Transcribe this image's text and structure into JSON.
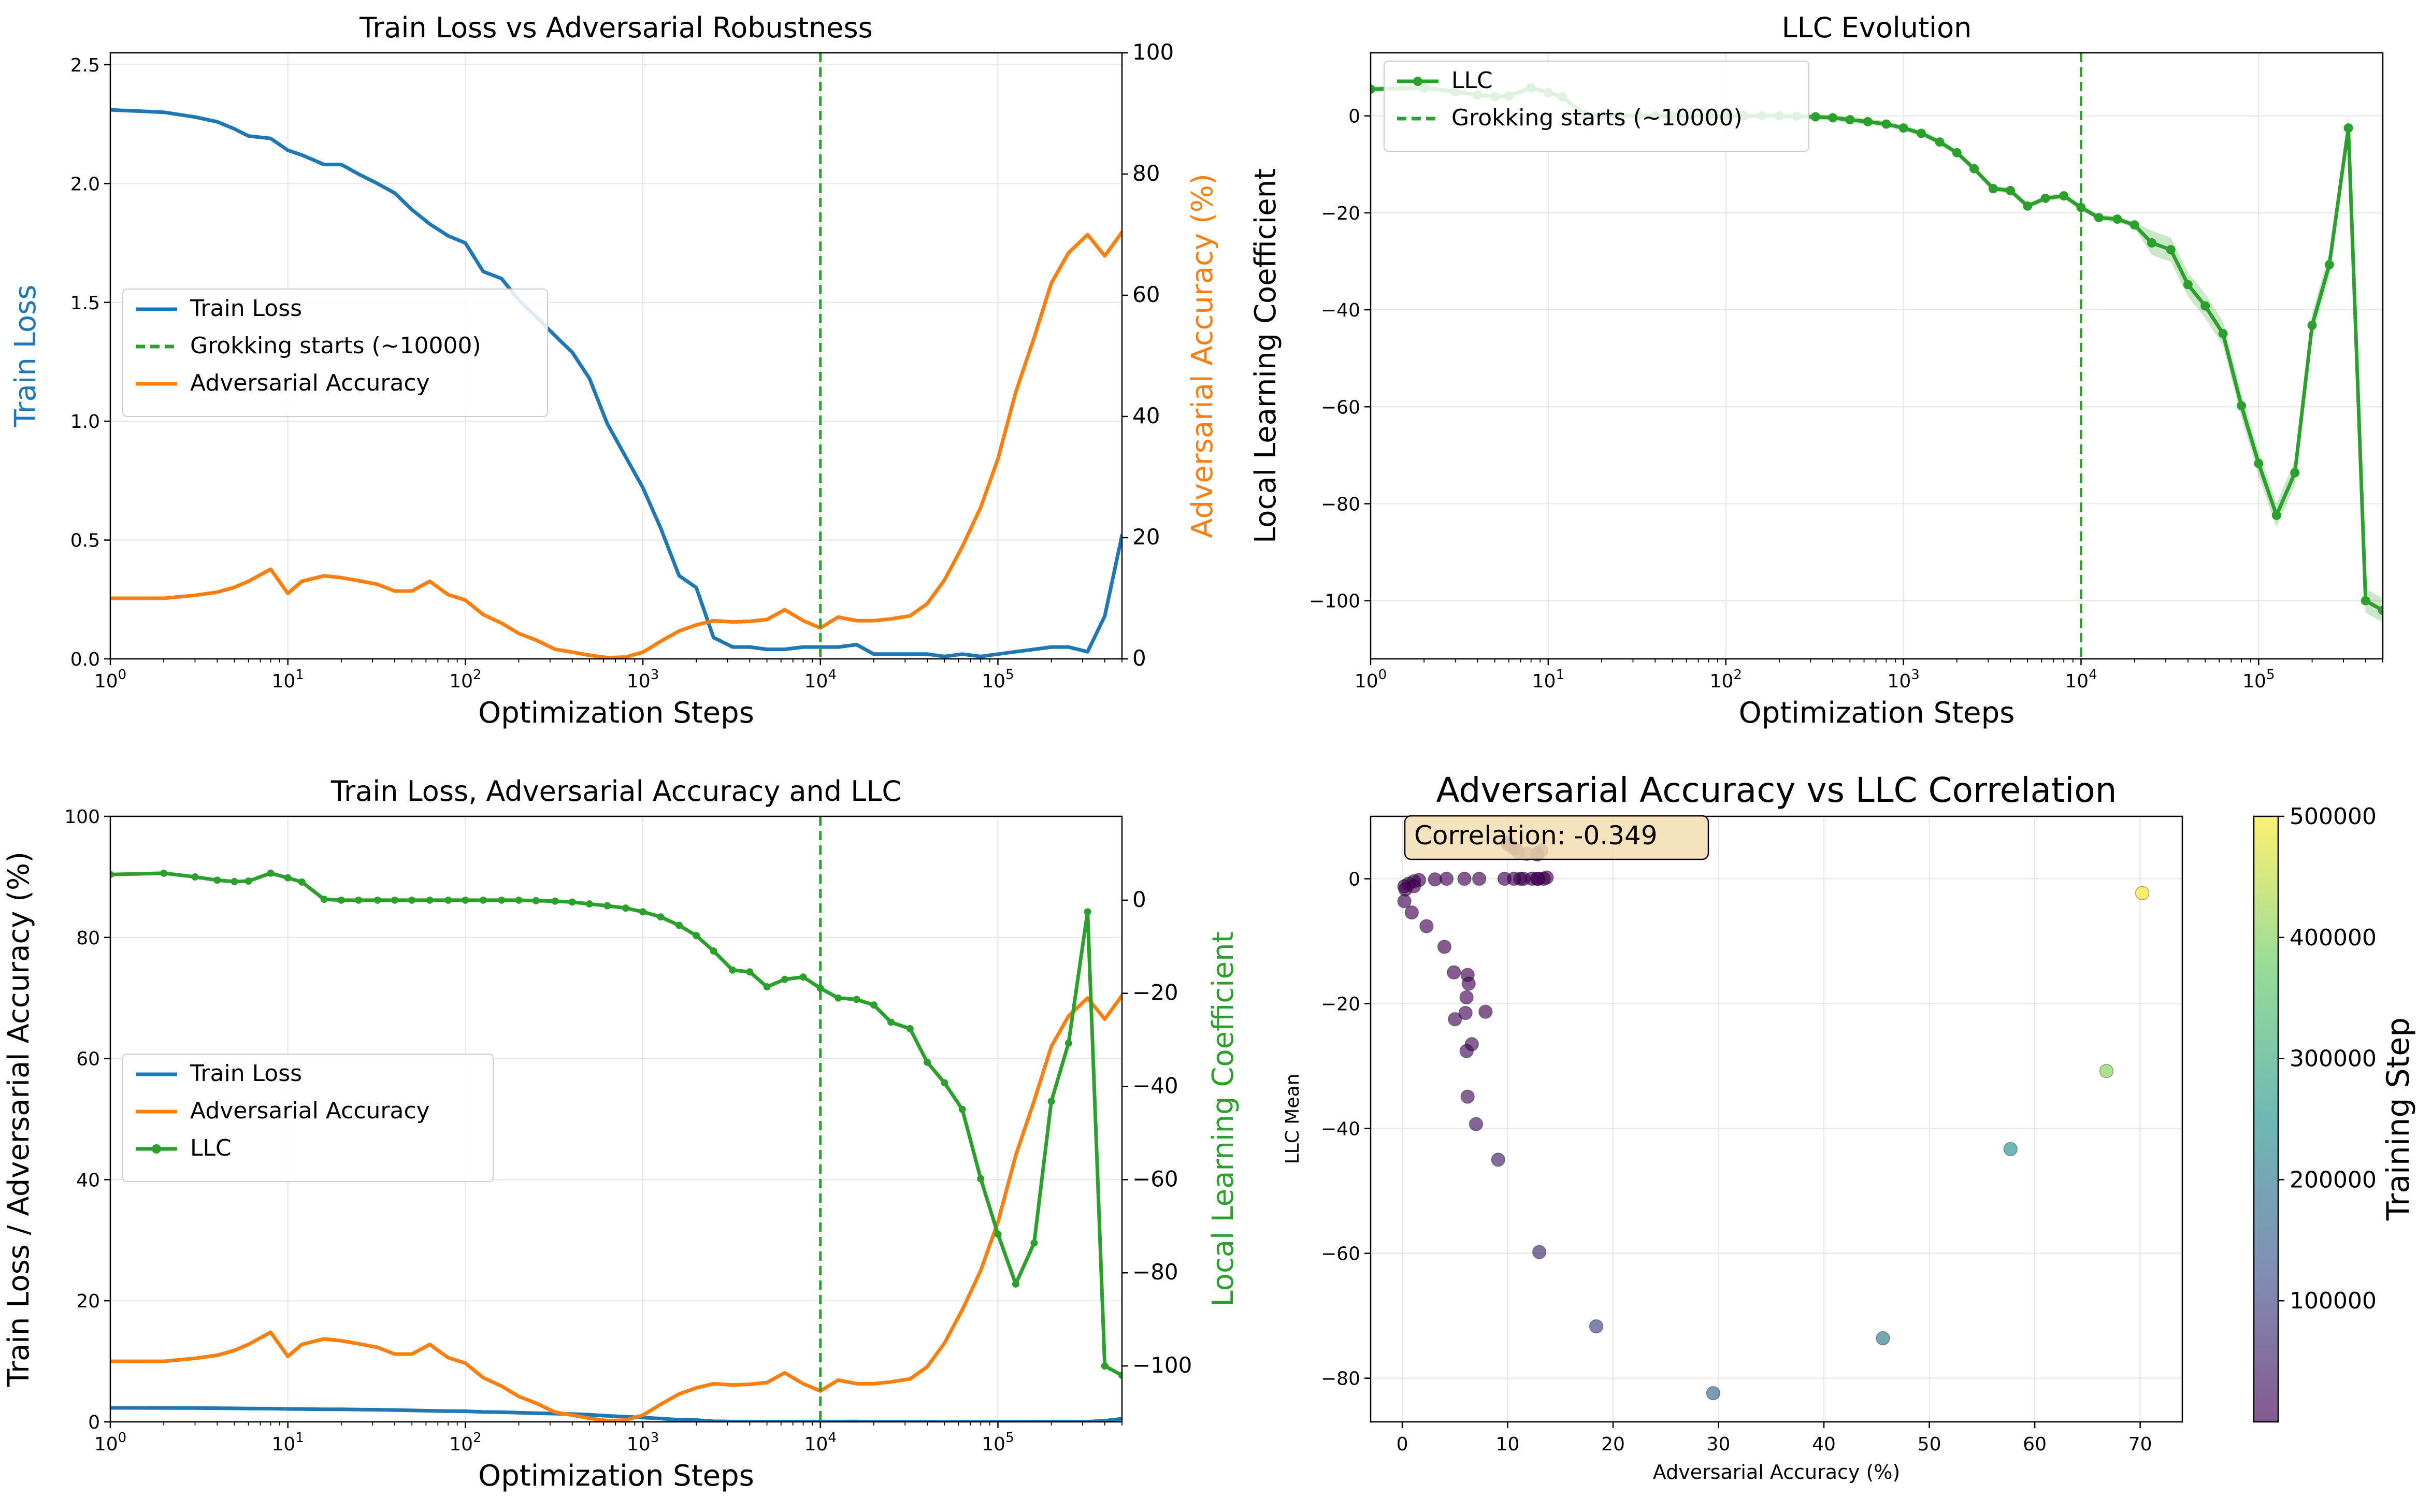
{
  "colors": {
    "train_loss": "#1f77b4",
    "adversarial": "#ff7f0e",
    "llc": "#2ca02c",
    "grid": "#e5e5e5",
    "grokking_line": "#2ca02c"
  },
  "chart_data": [
    {
      "id": "p1",
      "type": "line",
      "title": "Train Loss vs Adversarial Robustness",
      "xlabel": "Optimization Steps",
      "ylabel": "Train Loss",
      "ylabel_right": "Adversarial Accuracy (%)",
      "xscale": "log",
      "xlim": [
        1,
        500000
      ],
      "ylim": [
        0,
        2.55
      ],
      "ylim_right": [
        0,
        100
      ],
      "x_ticks": [
        1,
        10,
        100,
        1000,
        10000,
        100000
      ],
      "x_tick_labels": [
        {
          "base": "10",
          "exp": "0"
        },
        {
          "base": "10",
          "exp": "1"
        },
        {
          "base": "10",
          "exp": "2"
        },
        {
          "base": "10",
          "exp": "3"
        },
        {
          "base": "10",
          "exp": "4"
        },
        {
          "base": "10",
          "exp": "5"
        }
      ],
      "y_ticks": [
        0,
        0.5,
        1.0,
        1.5,
        2.0,
        2.5
      ],
      "y_tick_labels": [
        "0.0",
        "0.5",
        "1.0",
        "1.5",
        "2.0",
        "2.5"
      ],
      "y_ticks_right": [
        0,
        20,
        40,
        60,
        80,
        100
      ],
      "y_tick_labels_right": [
        "0",
        "20",
        "40",
        "60",
        "80",
        "100"
      ],
      "grid": true,
      "legend_position": "center-left",
      "legend": [
        "Train Loss",
        "Grokking starts (~10000)",
        "Adversarial Accuracy"
      ],
      "vline": 10000,
      "series": [
        {
          "name": "Train Loss",
          "axis": "left",
          "color": "#1f77b4",
          "x": [
            1,
            2,
            3,
            4,
            5,
            6,
            8,
            10,
            12,
            16,
            20,
            25,
            32,
            40,
            50,
            63,
            80,
            100,
            126,
            160,
            200,
            250,
            320,
            400,
            500,
            630,
            800,
            1000,
            1260,
            1600,
            2000,
            2500,
            3200,
            4000,
            5000,
            6300,
            8000,
            10000,
            12600,
            16000,
            20000,
            25000,
            32000,
            40000,
            50000,
            63000,
            80000,
            100000,
            126000,
            160000,
            200000,
            250000,
            320000,
            400000,
            500000
          ],
          "y": [
            2.31,
            2.3,
            2.28,
            2.26,
            2.23,
            2.2,
            2.19,
            2.14,
            2.12,
            2.08,
            2.08,
            2.04,
            2.0,
            1.96,
            1.89,
            1.83,
            1.78,
            1.75,
            1.63,
            1.6,
            1.51,
            1.44,
            1.36,
            1.29,
            1.18,
            0.99,
            0.85,
            0.72,
            0.55,
            0.35,
            0.3,
            0.09,
            0.05,
            0.05,
            0.04,
            0.04,
            0.05,
            0.05,
            0.05,
            0.06,
            0.02,
            0.02,
            0.02,
            0.02,
            0.01,
            0.02,
            0.01,
            0.02,
            0.03,
            0.04,
            0.05,
            0.05,
            0.03,
            0.18,
            0.52
          ]
        },
        {
          "name": "Adversarial Accuracy",
          "axis": "right",
          "color": "#ff7f0e",
          "x": [
            1,
            2,
            3,
            4,
            5,
            6,
            8,
            10,
            12,
            16,
            20,
            25,
            32,
            40,
            50,
            63,
            80,
            100,
            126,
            160,
            200,
            250,
            320,
            400,
            500,
            630,
            800,
            1000,
            1260,
            1600,
            2000,
            2500,
            3200,
            4000,
            5000,
            6300,
            8000,
            10000,
            12600,
            16000,
            20000,
            25000,
            32000,
            40000,
            50000,
            63000,
            80000,
            100000,
            126000,
            160000,
            200000,
            250000,
            320000,
            400000,
            500000
          ],
          "y": [
            10,
            10,
            10.5,
            11,
            11.8,
            12.8,
            14.8,
            10.8,
            12.8,
            13.7,
            13.4,
            12.9,
            12.3,
            11.2,
            11.2,
            12.8,
            10.6,
            9.7,
            7.3,
            5.9,
            4.2,
            3.1,
            1.6,
            1.1,
            0.6,
            0.2,
            0.3,
            1.1,
            2.9,
            4.6,
            5.6,
            6.3,
            6.1,
            6.2,
            6.5,
            8.1,
            6.3,
            5.1,
            6.9,
            6.3,
            6.3,
            6.6,
            7.1,
            9.1,
            13,
            18.5,
            25,
            33,
            44,
            53,
            62,
            67,
            70,
            66.5,
            70.4
          ]
        }
      ]
    },
    {
      "id": "p2",
      "type": "line",
      "title": "LLC Evolution",
      "xlabel": "Optimization Steps",
      "ylabel": "Local Learning Coefficient",
      "xscale": "log",
      "xlim": [
        1,
        500000
      ],
      "ylim": [
        -112,
        13
      ],
      "x_ticks": [
        1,
        10,
        100,
        1000,
        10000,
        100000
      ],
      "x_tick_labels": [
        {
          "base": "10",
          "exp": "0"
        },
        {
          "base": "10",
          "exp": "1"
        },
        {
          "base": "10",
          "exp": "2"
        },
        {
          "base": "10",
          "exp": "3"
        },
        {
          "base": "10",
          "exp": "4"
        },
        {
          "base": "10",
          "exp": "5"
        }
      ],
      "y_ticks": [
        0,
        -20,
        -40,
        -60,
        -80,
        -100
      ],
      "y_tick_labels": [
        "0",
        "−20",
        "−40",
        "−60",
        "−80",
        "−100"
      ],
      "grid": true,
      "legend_position": "top-left",
      "legend": [
        "LLC",
        "Grokking starts (~10000)"
      ],
      "vline": 10000,
      "series": [
        {
          "name": "LLC",
          "color": "#2ca02c",
          "markers": true,
          "band": true,
          "x": [
            1,
            2,
            3,
            4,
            5,
            6,
            8,
            10,
            12,
            16,
            20,
            25,
            32,
            40,
            50,
            63,
            80,
            100,
            126,
            160,
            200,
            250,
            320,
            400,
            500,
            630,
            800,
            1000,
            1260,
            1600,
            2000,
            2500,
            3200,
            4000,
            5000,
            6300,
            8000,
            10000,
            12600,
            16000,
            20000,
            25000,
            32000,
            40000,
            50000,
            63000,
            80000,
            100000,
            126000,
            160000,
            200000,
            250000,
            320000,
            400000,
            500000
          ],
          "y": [
            5.5,
            5.8,
            5.0,
            4.3,
            4.0,
            4.1,
            5.8,
            4.8,
            3.9,
            0.2,
            0.0,
            0.0,
            0.0,
            0.0,
            0.0,
            0.0,
            0.0,
            0.0,
            0.0,
            0.0,
            0.0,
            -0.1,
            -0.2,
            -0.4,
            -0.8,
            -1.2,
            -1.7,
            -2.5,
            -3.6,
            -5.4,
            -7.6,
            -10.9,
            -15.0,
            -15.4,
            -18.6,
            -17.0,
            -16.5,
            -18.9,
            -21.0,
            -21.3,
            -22.5,
            -26.2,
            -27.6,
            -34.8,
            -39.2,
            -44.9,
            -59.8,
            -71.7,
            -82.4,
            -73.6,
            -43.2,
            -30.7,
            -2.5,
            -100,
            -102
          ]
        }
      ]
    },
    {
      "id": "p3",
      "type": "line",
      "title": "Train Loss, Adversarial Accuracy and LLC",
      "xlabel": "Optimization Steps",
      "ylabel": "Train Loss / Adversarial Accuracy (%)",
      "ylabel_right": "Local Learning Coefficient",
      "xscale": "log",
      "xlim": [
        1,
        500000
      ],
      "ylim": [
        0,
        100
      ],
      "ylim_right": [
        -112,
        18
      ],
      "x_ticks": [
        1,
        10,
        100,
        1000,
        10000,
        100000
      ],
      "x_tick_labels": [
        {
          "base": "10",
          "exp": "0"
        },
        {
          "base": "10",
          "exp": "1"
        },
        {
          "base": "10",
          "exp": "2"
        },
        {
          "base": "10",
          "exp": "3"
        },
        {
          "base": "10",
          "exp": "4"
        },
        {
          "base": "10",
          "exp": "5"
        }
      ],
      "y_ticks": [
        0,
        20,
        40,
        60,
        80,
        100
      ],
      "y_tick_labels": [
        "0",
        "20",
        "40",
        "60",
        "80",
        "100"
      ],
      "y_ticks_right": [
        0,
        -20,
        -40,
        -60,
        -80,
        -100
      ],
      "y_tick_labels_right": [
        "0",
        "−20",
        "−40",
        "−60",
        "−80",
        "−100"
      ],
      "grid": true,
      "legend_position": "center-left",
      "legend": [
        "Train Loss",
        "Adversarial Accuracy",
        "LLC"
      ],
      "vline": 10000,
      "series_ref": "p3 uses the series of p1 (Train Loss, Adversarial Accuracy on left axis) and p2 (LLC on right axis)"
    },
    {
      "id": "p4",
      "type": "scatter",
      "title": "Adversarial Accuracy vs LLC Correlation",
      "xlabel": "Adversarial Accuracy (%)",
      "ylabel": "LLC Mean",
      "xlim": [
        -3,
        74
      ],
      "ylim": [
        -87,
        10
      ],
      "x_ticks": [
        0,
        10,
        20,
        30,
        40,
        50,
        60,
        70
      ],
      "x_tick_labels": [
        "0",
        "10",
        "20",
        "30",
        "40",
        "50",
        "60",
        "70"
      ],
      "y_ticks": [
        0,
        -20,
        -40,
        -60,
        -80
      ],
      "y_tick_labels": [
        "0",
        "−20",
        "−40",
        "−60",
        "−80"
      ],
      "grid": true,
      "annotation": "Correlation: -0.349",
      "colorbar_label": "Training Step",
      "colorbar_range": [
        1,
        500000
      ],
      "colorbar_ticks": [
        100000,
        200000,
        300000,
        400000,
        500000
      ],
      "colorbar_tick_labels": [
        "100000",
        "200000",
        "300000",
        "400000",
        "500000"
      ],
      "points": [
        {
          "x": 10.0,
          "y": 5.5,
          "step": 1
        },
        {
          "x": 10.0,
          "y": 5.8,
          "step": 2
        },
        {
          "x": 10.5,
          "y": 5.0,
          "step": 3
        },
        {
          "x": 11.0,
          "y": 4.3,
          "step": 4
        },
        {
          "x": 11.8,
          "y": 4.0,
          "step": 5
        },
        {
          "x": 12.8,
          "y": 4.1,
          "step": 6
        },
        {
          "x": 13.2,
          "y": 4.5,
          "step": 8
        },
        {
          "x": 10.8,
          "y": 4.8,
          "step": 10
        },
        {
          "x": 12.8,
          "y": 3.9,
          "step": 12
        },
        {
          "x": 13.7,
          "y": 0.2,
          "step": 16
        },
        {
          "x": 13.4,
          "y": 0.0,
          "step": 20
        },
        {
          "x": 12.9,
          "y": 0.0,
          "step": 25
        },
        {
          "x": 12.3,
          "y": 0.0,
          "step": 32
        },
        {
          "x": 11.2,
          "y": 0.0,
          "step": 40
        },
        {
          "x": 11.5,
          "y": 0.0,
          "step": 50
        },
        {
          "x": 12.8,
          "y": 0.0,
          "step": 63
        },
        {
          "x": 10.6,
          "y": 0.0,
          "step": 80
        },
        {
          "x": 9.7,
          "y": 0.0,
          "step": 100
        },
        {
          "x": 7.3,
          "y": 0.0,
          "step": 126
        },
        {
          "x": 5.9,
          "y": 0.0,
          "step": 160
        },
        {
          "x": 4.2,
          "y": 0.0,
          "step": 200
        },
        {
          "x": 3.1,
          "y": -0.1,
          "step": 250
        },
        {
          "x": 1.6,
          "y": -0.2,
          "step": 320
        },
        {
          "x": 1.1,
          "y": -0.4,
          "step": 400
        },
        {
          "x": 0.6,
          "y": -0.8,
          "step": 500
        },
        {
          "x": 0.2,
          "y": -1.2,
          "step": 630
        },
        {
          "x": 0.3,
          "y": -1.7,
          "step": 800
        },
        {
          "x": 1.1,
          "y": -1.2,
          "step": 1000
        },
        {
          "x": 0.2,
          "y": -3.6,
          "step": 1260
        },
        {
          "x": 0.9,
          "y": -5.4,
          "step": 1600
        },
        {
          "x": 2.3,
          "y": -7.6,
          "step": 2000
        },
        {
          "x": 4.0,
          "y": -10.9,
          "step": 2500
        },
        {
          "x": 4.9,
          "y": -15.0,
          "step": 3200
        },
        {
          "x": 6.2,
          "y": -15.4,
          "step": 4000
        },
        {
          "x": 6.3,
          "y": -16.8,
          "step": 5000
        },
        {
          "x": 7.9,
          "y": -21.3,
          "step": 6300
        },
        {
          "x": 6.1,
          "y": -19.0,
          "step": 8000
        },
        {
          "x": 5.0,
          "y": -22.5,
          "step": 10000
        },
        {
          "x": 6.0,
          "y": -21.5,
          "step": 12600
        },
        {
          "x": 6.6,
          "y": -26.5,
          "step": 16000
        },
        {
          "x": 6.1,
          "y": -27.6,
          "step": 20000
        },
        {
          "x": 6.2,
          "y": -34.9,
          "step": 25000
        },
        {
          "x": 7.0,
          "y": -39.3,
          "step": 32000
        },
        {
          "x": 9.1,
          "y": -45.0,
          "step": 40000
        },
        {
          "x": 13.0,
          "y": -59.8,
          "step": 63000
        },
        {
          "x": 18.4,
          "y": -71.7,
          "step": 100000
        },
        {
          "x": 29.5,
          "y": -82.4,
          "step": 160000
        },
        {
          "x": 45.6,
          "y": -73.6,
          "step": 200000
        },
        {
          "x": 57.7,
          "y": -43.3,
          "step": 250000
        },
        {
          "x": 66.8,
          "y": -30.8,
          "step": 400000
        },
        {
          "x": 70.2,
          "y": -2.3,
          "step": 500000
        }
      ]
    }
  ]
}
